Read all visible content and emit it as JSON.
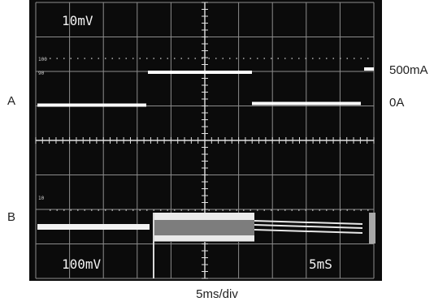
{
  "screen": {
    "volts_top": "10mV",
    "volts_bottom": "100mV",
    "timebase": "5mS",
    "graticule_100": "100",
    "graticule_90": "90",
    "graticule_10": "10"
  },
  "labels": {
    "channel_a": "A",
    "channel_b": "B",
    "current_high": "500mA",
    "current_zero": "0A",
    "time_scale": "5ms/div"
  },
  "colors": {
    "screen_bg": "#0b0b0b",
    "trace": "#ffffff",
    "grid": "#bdbdbd"
  }
}
